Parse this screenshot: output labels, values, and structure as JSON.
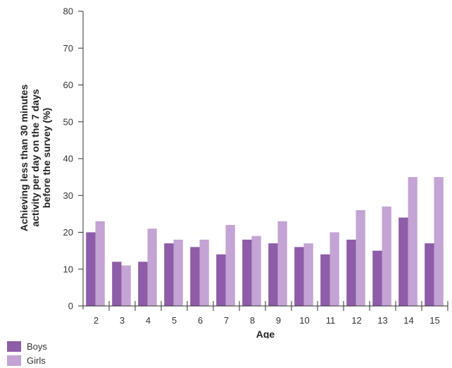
{
  "chart_data": {
    "type": "bar",
    "title": "",
    "xlabel": "Age",
    "ylabel_lines": [
      "Achieving less than 30 minutes",
      "activity per day on the 7 days",
      "before the survey (%)"
    ],
    "categories": [
      "2",
      "3",
      "4",
      "5",
      "6",
      "7",
      "8",
      "9",
      "10",
      "11",
      "12",
      "13",
      "14",
      "15"
    ],
    "series": [
      {
        "name": "Boys",
        "color": "#8e5ca8",
        "values": [
          20,
          12,
          12,
          17,
          16,
          14,
          18,
          17,
          16,
          14,
          18,
          15,
          24,
          17
        ]
      },
      {
        "name": "Girls",
        "color": "#c3a4d4",
        "values": [
          23,
          11,
          21,
          18,
          18,
          22,
          19,
          23,
          17,
          20,
          26,
          27,
          35,
          35
        ]
      }
    ],
    "ylim": [
      0,
      80
    ],
    "yticks": [
      "0",
      "10",
      "20",
      "30",
      "40",
      "50",
      "60",
      "70",
      "80"
    ],
    "grid": false,
    "legend_position": "bottom-left"
  }
}
